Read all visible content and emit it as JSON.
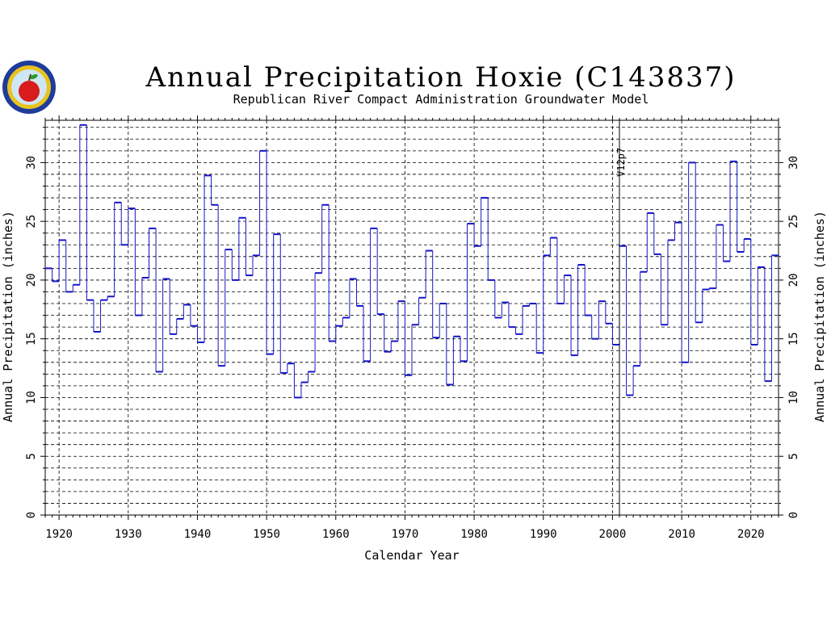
{
  "chart_data": {
    "type": "line",
    "step": true,
    "title": "Annual Precipitation Hoxie (C143837)",
    "subtitle": "Republican River Compact Administration Groundwater Model",
    "xlabel": "Calendar Year",
    "ylabel": "Annual Precipitation (inches)",
    "y2label": "Annual Precipitation (inches)",
    "xlim": [
      1918,
      2024
    ],
    "ylim": [
      0,
      33.6
    ],
    "x_ticks": [
      1920,
      1930,
      1940,
      1950,
      1960,
      1970,
      1980,
      1990,
      2000,
      2010,
      2020
    ],
    "y_ticks": [
      0,
      5,
      10,
      15,
      20,
      25,
      30
    ],
    "grid": true,
    "annotation": {
      "text": "V12p7",
      "x": 2001
    },
    "series_color": "#1515c8",
    "series": [
      {
        "x": [
          1918,
          1919,
          1920,
          1921,
          1922,
          1923,
          1924,
          1925,
          1926,
          1927,
          1928,
          1929,
          1930,
          1931,
          1932,
          1933,
          1934,
          1935,
          1936,
          1937,
          1938,
          1939,
          1940,
          1941,
          1942,
          1943,
          1944,
          1945,
          1946,
          1947,
          1948,
          1949,
          1950,
          1951,
          1952,
          1953,
          1954,
          1955,
          1956,
          1957,
          1958,
          1959,
          1960,
          1961,
          1962,
          1963,
          1964,
          1965,
          1966,
          1967,
          1968,
          1969,
          1970,
          1971,
          1972,
          1973,
          1974,
          1975,
          1976,
          1977,
          1978,
          1979,
          1980,
          1981,
          1982,
          1983,
          1984,
          1985,
          1986,
          1987,
          1988,
          1989,
          1990,
          1991,
          1992,
          1993,
          1994,
          1995,
          1996,
          1997,
          1998,
          1999,
          2000,
          2001,
          2002,
          2003,
          2004,
          2005,
          2006,
          2007,
          2008,
          2009,
          2010,
          2011,
          2012,
          2013,
          2014,
          2015,
          2016,
          2017,
          2018,
          2019,
          2020,
          2021,
          2022,
          2023
        ],
        "values": [
          21.0,
          19.9,
          23.4,
          19.0,
          19.6,
          33.2,
          18.3,
          15.6,
          18.3,
          18.6,
          26.6,
          23.0,
          26.1,
          17.0,
          20.2,
          24.4,
          12.2,
          20.1,
          15.4,
          16.7,
          17.9,
          16.1,
          14.7,
          28.9,
          26.4,
          12.7,
          22.6,
          20.0,
          25.3,
          20.4,
          22.1,
          31.0,
          13.7,
          23.9,
          12.1,
          12.9,
          10.0,
          11.3,
          12.2,
          20.6,
          26.4,
          14.8,
          16.1,
          16.8,
          20.1,
          17.8,
          13.1,
          24.4,
          17.1,
          13.9,
          14.8,
          18.2,
          11.9,
          16.2,
          18.5,
          22.5,
          15.1,
          18.0,
          11.1,
          15.2,
          13.1,
          24.8,
          22.9,
          27.0,
          20.0,
          16.8,
          18.1,
          16.0,
          15.4,
          17.8,
          18.0,
          13.8,
          22.1,
          23.6,
          18.0,
          20.4,
          13.6,
          21.3,
          17.0,
          15.0,
          18.2,
          16.3,
          14.5,
          22.9,
          10.2,
          12.7,
          20.7,
          25.7,
          22.2,
          16.2,
          23.4,
          24.9,
          13.0,
          30.0,
          16.4,
          19.2,
          19.3,
          24.7,
          21.6,
          30.1,
          22.4,
          23.5,
          14.5,
          21.1,
          11.4,
          22.1
        ]
      }
    ]
  }
}
